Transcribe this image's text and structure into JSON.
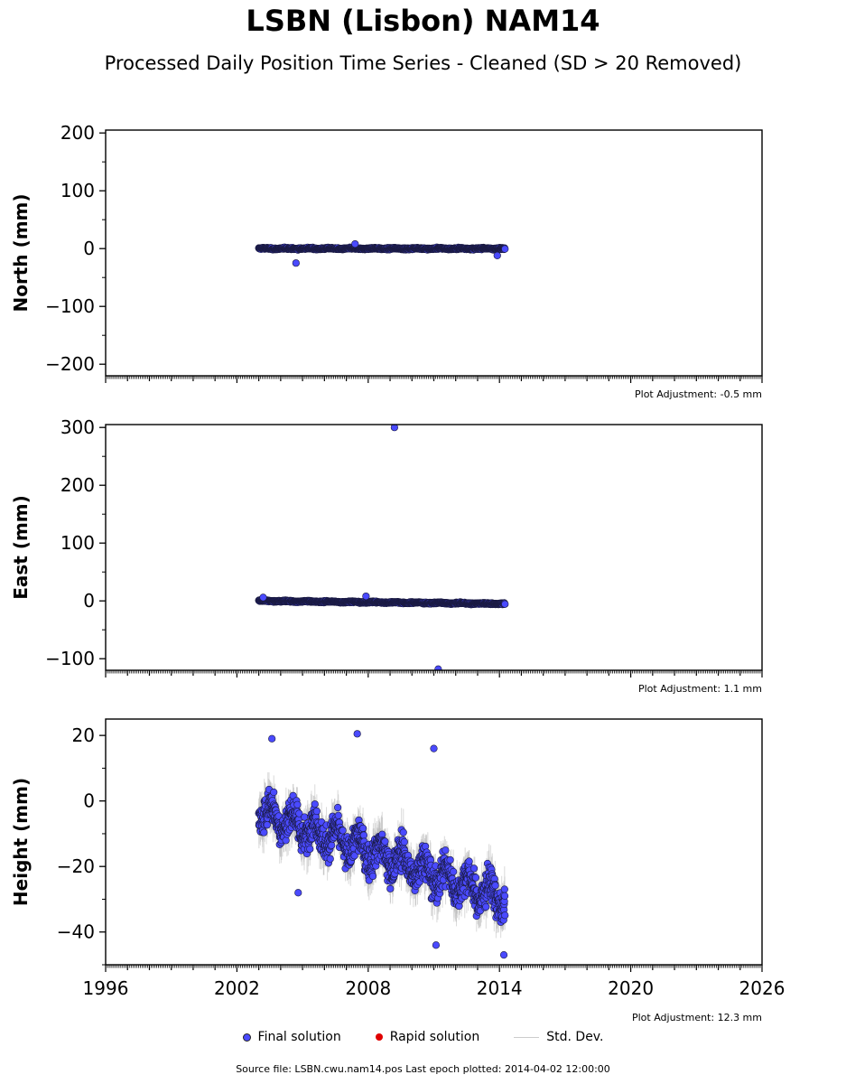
{
  "title": "LSBN (Lisbon) NAM14",
  "subtitle": "Processed Daily Position Time Series - Cleaned (SD > 20 Removed)",
  "legend": {
    "final": "Final solution",
    "rapid": "Rapid solution",
    "stddev": "Std. Dev."
  },
  "footer": "Source file: LSBN.cwu.nam14.pos  Last epoch plotted: 2014-04-02 12:00:00",
  "colors": {
    "final": "#4a4aff",
    "rapid": "#e00000",
    "stddev": "#bbbbbb"
  },
  "chart_data": [
    {
      "type": "scatter",
      "ylabel": "North (mm)",
      "adjustment": "Plot Adjustment: -0.5 mm",
      "xlim": [
        1996,
        2026
      ],
      "ylim": [
        -220,
        205
      ],
      "yticks": [
        -200,
        -100,
        0,
        100,
        200
      ],
      "xticks": [
        1996,
        2002,
        2008,
        2014,
        2020,
        2026
      ],
      "show_xticklabels": false,
      "series": [
        {
          "name": "Final solution",
          "x_start": 2003.0,
          "x_end": 2014.25,
          "trend_start": 0,
          "trend_end": 0,
          "scatter": 1.8,
          "sd": 2
        }
      ],
      "outliers": [
        {
          "x": 2004.7,
          "y": -25
        },
        {
          "x": 2013.9,
          "y": -12
        },
        {
          "x": 2007.4,
          "y": 8
        }
      ]
    },
    {
      "type": "scatter",
      "ylabel": "East (mm)",
      "adjustment": "Plot Adjustment: 1.1 mm",
      "xlim": [
        1996,
        2026
      ],
      "ylim": [
        -120,
        305
      ],
      "yticks": [
        -100,
        0,
        100,
        200,
        300
      ],
      "xticks": [
        1996,
        2002,
        2008,
        2014,
        2020,
        2026
      ],
      "show_xticklabels": false,
      "series": [
        {
          "name": "Final solution",
          "x_start": 2003.0,
          "x_end": 2014.25,
          "trend_start": 0,
          "trend_end": -5,
          "scatter": 1.6,
          "sd": 2
        }
      ],
      "outliers": [
        {
          "x": 2009.2,
          "y": 300
        },
        {
          "x": 2011.2,
          "y": -118
        },
        {
          "x": 2003.2,
          "y": 6
        },
        {
          "x": 2007.9,
          "y": 8
        }
      ]
    },
    {
      "type": "scatter",
      "ylabel": "Height (mm)",
      "adjustment": "Plot Adjustment: 12.3 mm",
      "xlim": [
        1996,
        2026
      ],
      "ylim": [
        -50,
        25
      ],
      "yticks": [
        -40,
        -20,
        0,
        20
      ],
      "xticks": [
        1996,
        2002,
        2008,
        2014,
        2020,
        2026
      ],
      "show_xticklabels": true,
      "series": [
        {
          "name": "Final solution",
          "x_start": 2003.0,
          "x_end": 2014.25,
          "trend_start": -3,
          "trend_end": -30,
          "scatter": 6.5,
          "sd": 4
        }
      ],
      "outliers": [
        {
          "x": 2003.6,
          "y": 19
        },
        {
          "x": 2007.5,
          "y": 20.5
        },
        {
          "x": 2011.0,
          "y": 16
        },
        {
          "x": 2011.1,
          "y": -44
        },
        {
          "x": 2014.2,
          "y": -47
        },
        {
          "x": 2004.8,
          "y": -28
        }
      ]
    }
  ]
}
